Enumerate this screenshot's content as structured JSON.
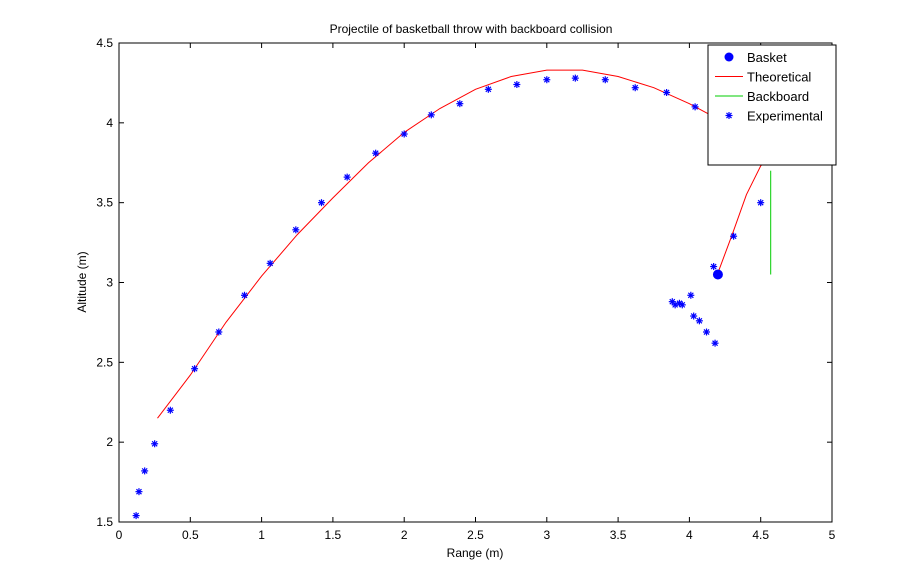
{
  "chart_data": {
    "type": "scatter",
    "title": "Projectile of basketball throw with backboard collision",
    "xlabel": "Range (m)",
    "ylabel": "Altitude (m)",
    "xlim": [
      0,
      5
    ],
    "ylim": [
      1.5,
      4.5
    ],
    "xticks": [
      0,
      0.5,
      1,
      1.5,
      2,
      2.5,
      3,
      3.5,
      4,
      4.5,
      5
    ],
    "yticks": [
      1.5,
      2,
      2.5,
      3,
      3.5,
      4,
      4.5
    ],
    "xtick_labels": [
      "0",
      "0.5",
      "1",
      "1.5",
      "2",
      "2.5",
      "3",
      "3.5",
      "4",
      "4.5",
      "5"
    ],
    "ytick_labels": [
      "1.5",
      "2",
      "2.5",
      "3",
      "3.5",
      "4",
      "4.5"
    ],
    "grid": false,
    "legend_position": "top-right",
    "legend": [
      {
        "label": "Basket",
        "marker": "filled-circle",
        "color": "#0000ff"
      },
      {
        "label": "Theoretical",
        "marker": "line",
        "color": "#ff0000"
      },
      {
        "label": "Backboard",
        "marker": "line",
        "color": "#00cc00"
      },
      {
        "label": "Experimental",
        "marker": "asterisk",
        "color": "#0000ff"
      }
    ],
    "series": [
      {
        "name": "Basket",
        "style": "filled-circle",
        "color": "#0000ff",
        "x": [
          4.2
        ],
        "y": [
          3.05
        ]
      },
      {
        "name": "Theoretical",
        "style": "line",
        "color": "#ff0000",
        "x": [
          0.27,
          0.5,
          0.75,
          1.0,
          1.25,
          1.5,
          1.75,
          2.0,
          2.25,
          2.5,
          2.75,
          3.0,
          3.25,
          3.5,
          3.75,
          4.0,
          4.25,
          4.4,
          4.5,
          4.58,
          4.5,
          4.4,
          4.3,
          4.2
        ],
        "y": [
          2.15,
          2.42,
          2.75,
          3.04,
          3.3,
          3.53,
          3.75,
          3.94,
          4.09,
          4.21,
          4.29,
          4.33,
          4.33,
          4.29,
          4.22,
          4.12,
          4.0,
          3.91,
          3.85,
          3.8,
          3.73,
          3.55,
          3.3,
          3.06
        ]
      },
      {
        "name": "Backboard",
        "style": "line",
        "color": "#00cc00",
        "x": [
          4.57,
          4.57
        ],
        "y": [
          3.05,
          3.7
        ]
      },
      {
        "name": "Experimental",
        "style": "asterisk",
        "color": "#0000ff",
        "x": [
          0.12,
          0.14,
          0.18,
          0.25,
          0.36,
          0.53,
          0.7,
          0.88,
          1.06,
          1.24,
          1.42,
          1.6,
          1.8,
          2.0,
          2.19,
          2.39,
          2.59,
          2.79,
          3.0,
          3.2,
          3.41,
          3.62,
          3.84,
          4.04,
          4.5,
          4.31,
          4.17,
          3.88,
          3.9,
          3.93,
          3.95,
          4.01,
          4.03,
          4.07,
          4.12,
          4.18
        ],
        "y": [
          1.54,
          1.69,
          1.82,
          1.99,
          2.2,
          2.46,
          2.69,
          2.92,
          3.12,
          3.33,
          3.5,
          3.66,
          3.81,
          3.93,
          4.05,
          4.12,
          4.21,
          4.24,
          4.27,
          4.28,
          4.27,
          4.22,
          4.19,
          4.1,
          3.5,
          3.29,
          3.1,
          2.88,
          2.86,
          2.87,
          2.86,
          2.92,
          2.79,
          2.76,
          2.69,
          2.62
        ]
      }
    ]
  }
}
